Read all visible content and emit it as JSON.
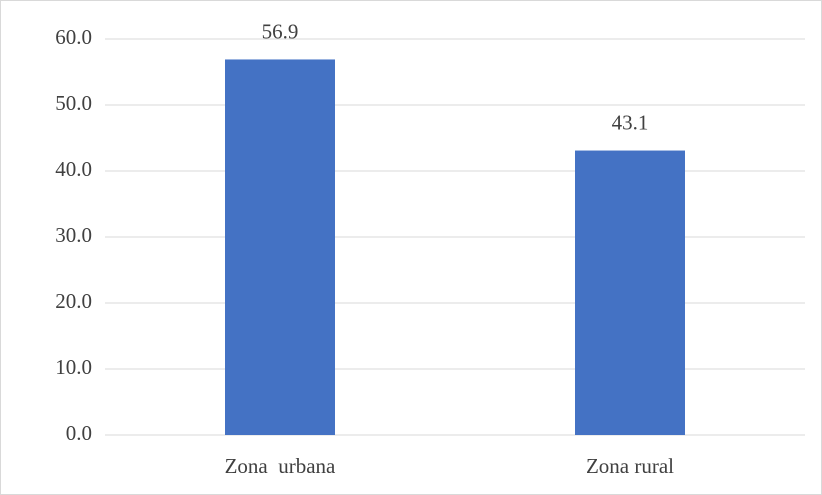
{
  "chart_data": {
    "type": "bar",
    "categories": [
      "Zona  urbana",
      "Zona rural"
    ],
    "values": [
      56.9,
      43.1
    ],
    "color": "#4472c4",
    "ylim": [
      0,
      60
    ],
    "yticks": [
      {
        "value": 0,
        "label": "0.0"
      },
      {
        "value": 10,
        "label": "10.0"
      },
      {
        "value": 20,
        "label": "20.0"
      },
      {
        "value": 30,
        "label": "30.0"
      },
      {
        "value": 40,
        "label": "40.0"
      },
      {
        "value": 50,
        "label": "50.0"
      },
      {
        "value": 60,
        "label": "60.0"
      }
    ],
    "grid": true
  }
}
